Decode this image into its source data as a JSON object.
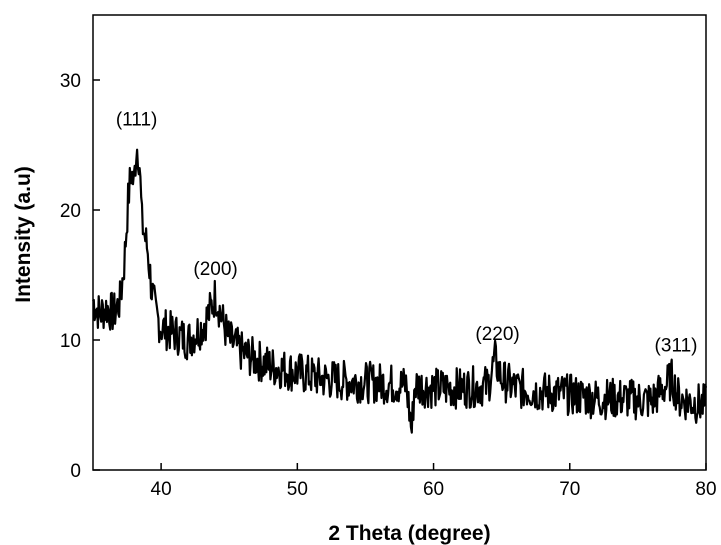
{
  "chart_data": {
    "type": "line",
    "title": "",
    "xlabel": "2 Theta (degree)",
    "ylabel": "Intensity (a.u)",
    "xlim": [
      35,
      80
    ],
    "ylim": [
      0,
      35
    ],
    "x_ticks": [
      40,
      50,
      60,
      70,
      80
    ],
    "y_ticks": [
      0,
      10,
      20,
      30
    ],
    "grid": false,
    "legend": "none",
    "line_color": "#000000",
    "annotations": [
      {
        "text": "(111)",
        "x": 38.2,
        "y": 26.5
      },
      {
        "text": "(200)",
        "x": 44.0,
        "y": 15.0
      },
      {
        "text": "(220)",
        "x": 64.7,
        "y": 10.0
      },
      {
        "text": "(311)",
        "x": 77.8,
        "y": 9.1
      }
    ],
    "series": [
      {
        "x": [
          35.0,
          35.5,
          36.0,
          36.5,
          37.0,
          37.3,
          37.6,
          37.8,
          38.0,
          38.2,
          38.4,
          38.6,
          38.8,
          39.0,
          39.3,
          39.6,
          40.0,
          41.0,
          42.0,
          43.0,
          43.5,
          44.0,
          44.5,
          45.0,
          46.0,
          47.0,
          48.0,
          50.0,
          52.0,
          54.0,
          56.0,
          58.0,
          58.4,
          58.6,
          60.0,
          62.0,
          64.0,
          64.5,
          65.0,
          66.0,
          68.0,
          70.0,
          72.0,
          74.0,
          76.0,
          77.5,
          78.0,
          79.0,
          80.0
        ],
        "y": [
          13.0,
          12.0,
          12.5,
          12.0,
          13.0,
          16.0,
          21.0,
          23.0,
          22.0,
          25.0,
          24.0,
          19.0,
          18.0,
          17.0,
          14.0,
          12.0,
          11.0,
          10.5,
          10.0,
          11.0,
          12.0,
          13.5,
          11.5,
          10.0,
          9.0,
          8.5,
          8.0,
          7.5,
          7.0,
          6.8,
          6.7,
          6.5,
          3.0,
          6.5,
          6.3,
          6.3,
          6.5,
          8.5,
          7.0,
          6.3,
          6.0,
          5.8,
          5.5,
          5.5,
          5.3,
          7.0,
          5.5,
          5.2,
          5.0
        ]
      }
    ]
  }
}
